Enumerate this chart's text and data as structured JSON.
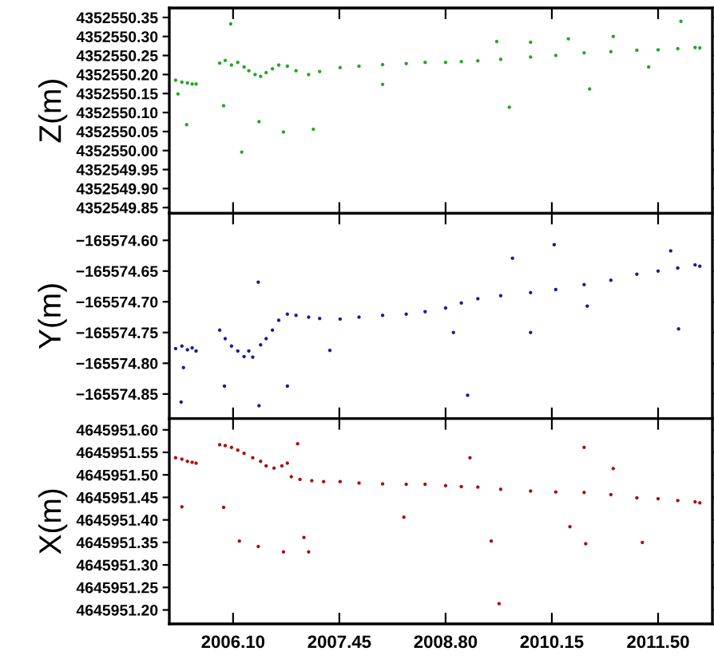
{
  "chart_data": [
    {
      "type": "scatter",
      "ylabel": "Z(m)",
      "grid": false,
      "legend": false,
      "tick_labels": "y",
      "xlim": [
        2005.29,
        2012.19
      ],
      "xticks": [
        {
          "value": 2006.1,
          "label": null
        },
        {
          "value": 2007.45,
          "label": null
        },
        {
          "value": 2008.8,
          "label": null
        },
        {
          "value": 2010.15,
          "label": null
        },
        {
          "value": 2011.5,
          "label": null
        }
      ],
      "ylim": [
        4352549.835,
        4352550.375
      ],
      "yticks": [
        {
          "value": 4352549.85,
          "label": "4352549.85"
        },
        {
          "value": 4352549.9,
          "label": "4352549.90"
        },
        {
          "value": 4352549.95,
          "label": "4352549.95"
        },
        {
          "value": 4352550.0,
          "label": "4352550.00"
        },
        {
          "value": 4352550.05,
          "label": "4352550.05"
        },
        {
          "value": 4352550.1,
          "label": "4352550.10"
        },
        {
          "value": 4352550.15,
          "label": "4352550.15"
        },
        {
          "value": 4352550.2,
          "label": "4352550.20"
        },
        {
          "value": 4352550.25,
          "label": "4352550.25"
        },
        {
          "value": 4352550.3,
          "label": "4352550.30"
        },
        {
          "value": 4352550.35,
          "label": "4352550.35"
        }
      ],
      "series": [
        {
          "color": "#22a822",
          "x": [
            2005.37,
            2005.45,
            2005.52,
            2005.58,
            2005.63,
            2005.93,
            2006.0,
            2006.08,
            2006.16,
            2006.24,
            2006.3,
            2006.38,
            2006.45,
            2006.52,
            2006.6,
            2006.68,
            2006.79,
            2006.9,
            2007.06,
            2007.2,
            2007.46,
            2007.7,
            2008.0,
            2008.3,
            2008.54,
            2008.8,
            2009.0,
            2009.21,
            2009.5,
            2009.88,
            2010.2,
            2010.56,
            2010.9,
            2011.23,
            2011.5,
            2011.75,
            2011.97,
            2012.03,
            2006.07,
            2006.21,
            2005.51,
            2005.4,
            2005.98,
            2006.43,
            2006.74,
            2007.12,
            2009.61,
            2010.63,
            2011.79,
            2009.88,
            2009.45,
            2010.36,
            2010.93,
            2008.0,
            2011.38
          ],
          "values": [
            4352550.185,
            4352550.18,
            4352550.178,
            4352550.175,
            4352550.175,
            4352550.23,
            4352550.237,
            4352550.225,
            4352550.232,
            4352550.22,
            4352550.21,
            4352550.2,
            4352550.195,
            4352550.205,
            4352550.215,
            4352550.225,
            4352550.222,
            4352550.21,
            4352550.2,
            4352550.208,
            4352550.218,
            4352550.222,
            4352550.226,
            4352550.229,
            4352550.232,
            4352550.232,
            4352550.234,
            4352550.236,
            4352550.24,
            4352550.246,
            4352550.25,
            4352550.257,
            4352550.26,
            4352550.264,
            4352550.265,
            4352550.268,
            4352550.271,
            4352550.27,
            4352550.333,
            4352549.996,
            4352550.068,
            4352550.149,
            4352550.118,
            4352550.076,
            4352550.049,
            4352550.056,
            4352550.114,
            4352550.162,
            4352550.34,
            4352550.285,
            4352550.287,
            4352550.294,
            4352550.3,
            4352550.174,
            4352550.22
          ]
        }
      ]
    },
    {
      "type": "scatter",
      "ylabel": "Y(m)",
      "grid": false,
      "legend": false,
      "tick_labels": "y",
      "xlim": [
        2005.29,
        2012.19
      ],
      "xticks": [
        {
          "value": 2006.1,
          "label": null
        },
        {
          "value": 2007.45,
          "label": null
        },
        {
          "value": 2008.8,
          "label": null
        },
        {
          "value": 2010.15,
          "label": null
        },
        {
          "value": 2011.5,
          "label": null
        }
      ],
      "ylim": [
        -165574.89,
        -165574.556
      ],
      "yticks": [
        {
          "value": -165574.85,
          "label": "−165574.85"
        },
        {
          "value": -165574.8,
          "label": "−165574.80"
        },
        {
          "value": -165574.75,
          "label": "−165574.75"
        },
        {
          "value": -165574.7,
          "label": "−165574.70"
        },
        {
          "value": -165574.65,
          "label": "−165574.65"
        },
        {
          "value": -165574.6,
          "label": "−165574.60"
        }
      ],
      "series": [
        {
          "color": "#1a1aa0",
          "x": [
            2005.37,
            2005.45,
            2005.52,
            2005.58,
            2005.63,
            2005.93,
            2006.0,
            2006.08,
            2006.16,
            2006.24,
            2006.3,
            2006.35,
            2006.45,
            2006.52,
            2006.6,
            2006.68,
            2006.79,
            2006.9,
            2007.06,
            2007.2,
            2007.46,
            2007.7,
            2008.0,
            2008.3,
            2008.54,
            2008.8,
            2009.0,
            2009.21,
            2009.5,
            2009.88,
            2010.2,
            2010.56,
            2010.9,
            2011.23,
            2011.5,
            2011.75,
            2011.97,
            2012.03,
            2005.44,
            2005.47,
            2005.99,
            2006.43,
            2006.42,
            2006.79,
            2007.33,
            2009.08,
            2009.65,
            2010.18,
            2011.66,
            2011.76,
            2009.88,
            2008.9,
            2010.6
          ],
          "values": [
            -165574.776,
            -165574.772,
            -165574.778,
            -165574.775,
            -165574.78,
            -165574.746,
            -165574.76,
            -165574.772,
            -165574.78,
            -165574.789,
            -165574.78,
            -165574.79,
            -165574.77,
            -165574.76,
            -165574.746,
            -165574.73,
            -165574.72,
            -165574.722,
            -165574.725,
            -165574.727,
            -165574.728,
            -165574.725,
            -165574.722,
            -165574.72,
            -165574.716,
            -165574.71,
            -165574.702,
            -165574.695,
            -165574.69,
            -165574.685,
            -165574.68,
            -165574.672,
            -165574.665,
            -165574.655,
            -165574.65,
            -165574.645,
            -165574.64,
            -165574.642,
            -165574.863,
            -165574.807,
            -165574.837,
            -165574.869,
            -165574.668,
            -165574.837,
            -165574.779,
            -165574.852,
            -165574.629,
            -165574.607,
            -165574.617,
            -165574.744,
            -165574.75,
            -165574.75,
            -165574.707
          ]
        }
      ]
    },
    {
      "type": "scatter",
      "ylabel": "X(m)",
      "grid": false,
      "legend": false,
      "xlim": [
        2005.29,
        2012.19
      ],
      "xticks": [
        {
          "value": 2006.1,
          "label": "2006.10"
        },
        {
          "value": 2007.45,
          "label": "2007.45"
        },
        {
          "value": 2008.8,
          "label": "2008.80"
        },
        {
          "value": 2010.15,
          "label": "2010.15"
        },
        {
          "value": 2011.5,
          "label": "2011.50"
        }
      ],
      "ylim": [
        4645951.169,
        4645951.625
      ],
      "yticks": [
        {
          "value": 4645951.2,
          "label": "4645951.20"
        },
        {
          "value": 4645951.25,
          "label": "4645951.25"
        },
        {
          "value": 4645951.3,
          "label": "4645951.30"
        },
        {
          "value": 4645951.35,
          "label": "4645951.35"
        },
        {
          "value": 4645951.4,
          "label": "4645951.40"
        },
        {
          "value": 4645951.45,
          "label": "4645951.45"
        },
        {
          "value": 4645951.5,
          "label": "4645951.50"
        },
        {
          "value": 4645951.55,
          "label": "4645951.55"
        },
        {
          "value": 4645951.6,
          "label": "4645951.60"
        }
      ],
      "series": [
        {
          "color": "#aa1111",
          "x": [
            2005.37,
            2005.45,
            2005.52,
            2005.58,
            2005.63,
            2005.93,
            2006.0,
            2006.08,
            2006.16,
            2006.24,
            2006.35,
            2006.45,
            2006.52,
            2006.62,
            2006.72,
            2006.79,
            2006.84,
            2006.95,
            2007.1,
            2007.25,
            2007.46,
            2007.7,
            2008.0,
            2008.3,
            2008.54,
            2008.8,
            2009.0,
            2009.21,
            2009.5,
            2009.88,
            2010.2,
            2010.56,
            2010.9,
            2011.23,
            2011.5,
            2011.75,
            2011.97,
            2012.03,
            2005.45,
            2005.98,
            2006.18,
            2006.42,
            2006.74,
            2007.0,
            2007.06,
            2008.27,
            2009.11,
            2009.38,
            2009.48,
            2010.56,
            2010.58,
            2011.3,
            2010.38,
            2010.93,
            2006.92
          ],
          "values": [
            4645951.538,
            4645951.535,
            4645951.53,
            4645951.528,
            4645951.526,
            4645951.567,
            4645951.565,
            4645951.561,
            4645951.555,
            4645951.548,
            4645951.538,
            4645951.53,
            4645951.52,
            4645951.515,
            4645951.52,
            4645951.526,
            4645951.496,
            4645951.49,
            4645951.487,
            4645951.485,
            4645951.485,
            4645951.482,
            4645951.48,
            4645951.479,
            4645951.479,
            4645951.476,
            4645951.474,
            4645951.473,
            4645951.468,
            4645951.464,
            4645951.462,
            4645951.461,
            4645951.456,
            4645951.449,
            4645951.447,
            4645951.443,
            4645951.44,
            4645951.438,
            4645951.429,
            4645951.428,
            4645951.353,
            4645951.341,
            4645951.329,
            4645951.361,
            4645951.329,
            4645951.406,
            4645951.538,
            4645951.353,
            4645951.214,
            4645951.561,
            4645951.347,
            4645951.35,
            4645951.385,
            4645951.514,
            4645951.569
          ]
        }
      ]
    }
  ]
}
